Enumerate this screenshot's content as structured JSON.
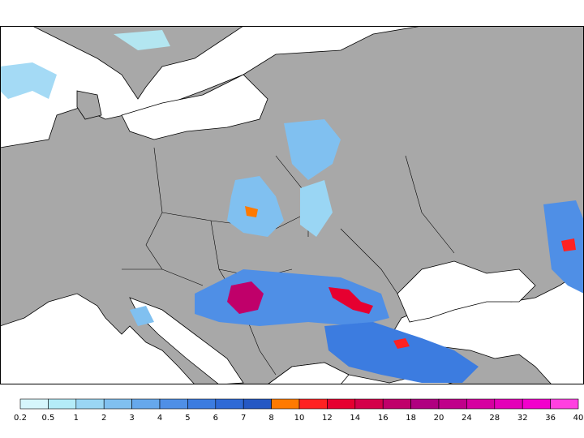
{
  "map": {
    "background_land": "#a8a8a8",
    "background_sea": "#ffffff",
    "border_color": "#000000"
  },
  "legend": {
    "steps": [
      {
        "label": "0.2",
        "color": "#d6f6fc"
      },
      {
        "label": "0.5",
        "color": "#b4ecf8"
      },
      {
        "label": "1",
        "color": "#9ad6f4"
      },
      {
        "label": "2",
        "color": "#80c0f0"
      },
      {
        "label": "3",
        "color": "#66a8ec"
      },
      {
        "label": "4",
        "color": "#4f8fe6"
      },
      {
        "label": "5",
        "color": "#3c7ce0"
      },
      {
        "label": "6",
        "color": "#2f6ad6"
      },
      {
        "label": "7",
        "color": "#2558c4"
      },
      {
        "label": "8",
        "color": "#ff7a00"
      },
      {
        "label": "10",
        "color": "#ff2222"
      },
      {
        "label": "12",
        "color": "#e60030"
      },
      {
        "label": "14",
        "color": "#d4004a"
      },
      {
        "label": "16",
        "color": "#c0006a"
      },
      {
        "label": "18",
        "color": "#b00080"
      },
      {
        "label": "20",
        "color": "#c0008a"
      },
      {
        "label": "24",
        "color": "#d600a0"
      },
      {
        "label": "28",
        "color": "#e400b8"
      },
      {
        "label": "32",
        "color": "#f200cc"
      },
      {
        "label": "36",
        "color": "#ff40e0"
      },
      {
        "label": "40",
        "color": "#ff80f0"
      }
    ]
  }
}
